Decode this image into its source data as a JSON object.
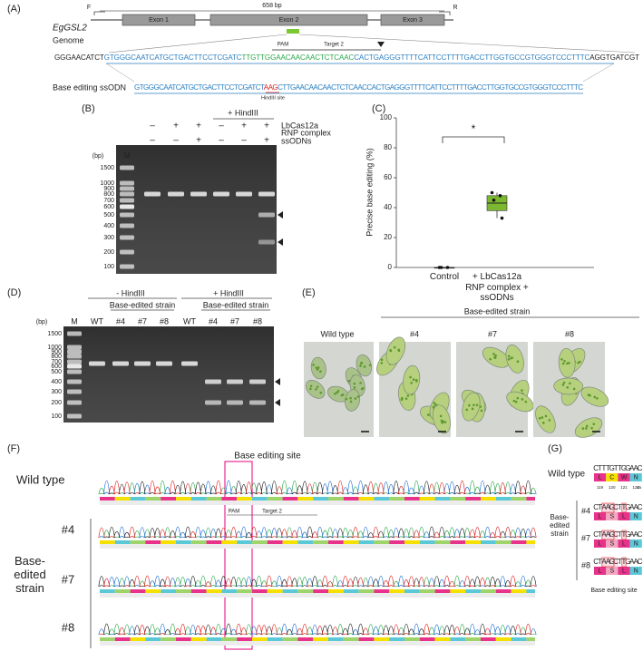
{
  "panel_labels": [
    "(A)",
    "(B)",
    "(C)",
    "(D)",
    "(E)",
    "(F)",
    "(G)"
  ],
  "gene_map": {
    "gene": "EgGSL2",
    "primer_f": "F",
    "primer_r": "R",
    "length": "658 bp",
    "exons": [
      "Exon 1",
      "Exon 2",
      "Exon 3"
    ]
  },
  "genome": {
    "label": "Genome",
    "pam": "PAM",
    "target": "Target 2",
    "segments": [
      {
        "text": "GGGAACATCT",
        "color": "#222222"
      },
      {
        "text": "GTGGGCAATCATGCTGACTTCCTCGATC",
        "color": "#2a7fc1"
      },
      {
        "text": "TTGTTGGAACAACAACTCTCAAC",
        "color": "#2aa84a"
      },
      {
        "text": "CACTGAGGGTTTTCATTCCTTTTGACCTTGGTGCCGTGGGTCCCTTTC",
        "color": "#2a7fc1"
      },
      {
        "text": "AGGTGATCGT",
        "color": "#222222"
      }
    ]
  },
  "ssodn": {
    "label": "Base editing ssODN",
    "site": "HindIII site",
    "segments": [
      {
        "text": "GTGGGCAATCATGCTGACTTCCTCGATCT",
        "color": "#2a7fc1"
      },
      {
        "text": "AAG",
        "color": "#e02020"
      },
      {
        "text": "CTTGAACAACAACTCTCAACCACTGAGGGTTTTCATTCCTTTTGACCTTGGTGCCGTGGGTCCCTTTC",
        "color": "#2a7fc1"
      }
    ]
  },
  "gel_b": {
    "plus": "+ HindIII",
    "row_labels": [
      "LbCas12a",
      "RNP complex",
      "ssODNs"
    ],
    "signs": [
      [
        "–",
        "+",
        "+",
        "–",
        "+",
        "+"
      ],
      [
        "–",
        "–",
        "+",
        "–",
        "–",
        "+"
      ]
    ],
    "bp_unit": "(bp)",
    "marker": "M",
    "ladder": [
      "1500",
      "1000",
      "900",
      "800",
      "700",
      "600",
      "500",
      "400",
      "300",
      "200",
      "100"
    ]
  },
  "chart_data": {
    "type": "box",
    "ylabel": "Precise base editing (%)",
    "categories": [
      "Control",
      "+ LbCas12a RNP complex + ssODNs"
    ],
    "ylim": [
      0,
      100
    ],
    "yticks": [
      0,
      20,
      40,
      60,
      80,
      100
    ],
    "color": "#7cb82f",
    "significance": "*",
    "boxes": [
      {
        "min": 0,
        "q1": 0,
        "median": 0,
        "q3": 0,
        "max": 0,
        "points": [
          0,
          0,
          0
        ]
      },
      {
        "min": 33,
        "q1": 38,
        "median": 43,
        "q3": 48,
        "max": 50,
        "points": [
          50,
          48,
          45,
          33
        ]
      }
    ]
  },
  "gel_d": {
    "minus": "- HindIII",
    "plus": "+ HindIII",
    "strain_labels": [
      "Base-edited strain",
      "Base-edited strain"
    ],
    "lanes": [
      "M",
      "WT",
      "#4",
      "#7",
      "#8",
      "WT",
      "#4",
      "#7",
      "#8"
    ],
    "bp_unit": "(bp)",
    "ladder": [
      "1500",
      "1000",
      "900",
      "800",
      "700",
      "600",
      "500",
      "400",
      "300",
      "200",
      "100"
    ]
  },
  "micrographs": {
    "wild_type": "Wild type",
    "strain": "Base-edited strain",
    "clones": [
      "#4",
      "#7",
      "#8"
    ]
  },
  "chromatograms": {
    "site": "Base editing site",
    "wild_type": "Wild type",
    "pam": "PAM",
    "target": "Target 2",
    "clones": [
      "#4",
      "#7",
      "#8"
    ],
    "strain": "Base-edited strain"
  },
  "alignment": {
    "wild_type": "Wild type",
    "wt_bases": [
      "C",
      "T",
      "T",
      "T",
      "G",
      "T",
      "T",
      "G",
      "G",
      "A",
      "A",
      "C"
    ],
    "wt_aa": [
      "L",
      "C",
      "W",
      "N"
    ],
    "positions": [
      "119",
      "120",
      "121",
      "122"
    ],
    "aa_unit": "aa",
    "clone_rows": [
      {
        "name": "#4",
        "bases": [
          "C",
          "T",
          "A",
          "A",
          "G",
          "C",
          "T",
          "T",
          "G",
          "A",
          "A",
          "C"
        ],
        "aa": [
          "L",
          "S",
          "L",
          "N"
        ]
      },
      {
        "name": "#7",
        "bases": [
          "C",
          "T",
          "A",
          "A",
          "G",
          "C",
          "T",
          "T",
          "G",
          "A",
          "A",
          "C"
        ],
        "aa": [
          "L",
          "S",
          "L",
          "N"
        ]
      },
      {
        "name": "#8",
        "bases": [
          "C",
          "T",
          "A",
          "A",
          "G",
          "C",
          "T",
          "T",
          "G",
          "A",
          "A",
          "C"
        ],
        "aa": [
          "L",
          "S",
          "L",
          "N"
        ]
      }
    ],
    "strain": "Base-edited strain",
    "site": "Base editing site"
  }
}
